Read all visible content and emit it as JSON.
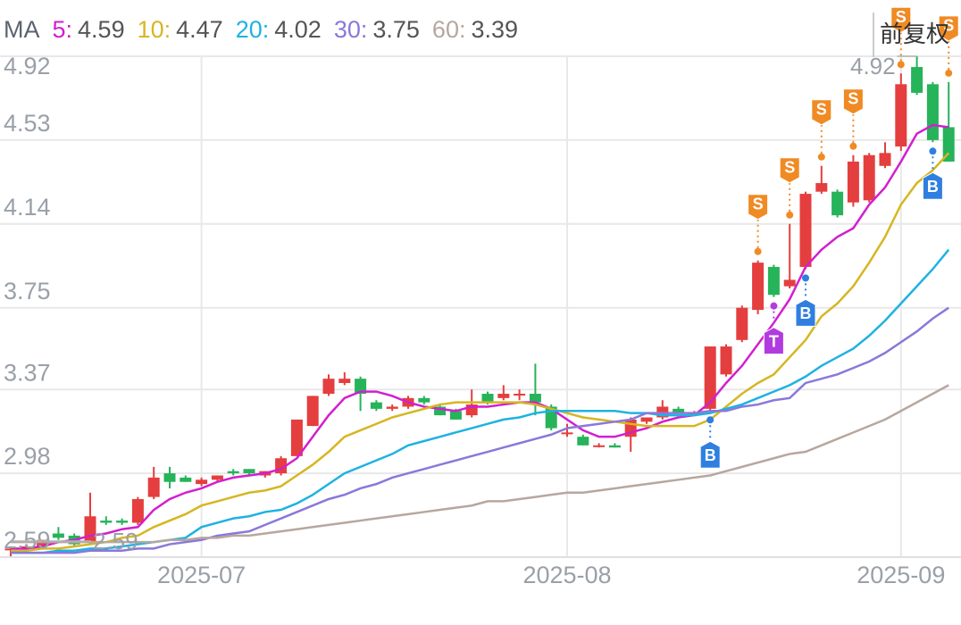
{
  "chart_data": {
    "type": "candlestick",
    "ma_label": "MA",
    "adjust_button": "前复权",
    "up_color": "#e53e3e",
    "down_color": "#26b35a",
    "grid": true,
    "ylim": [
      2.59,
      4.92
    ],
    "yticks": [
      2.59,
      2.98,
      3.37,
      3.75,
      4.14,
      4.53,
      4.92
    ],
    "categories": [
      null,
      null,
      null,
      null,
      null,
      null,
      null,
      null,
      null,
      null,
      null,
      null,
      "2025-07",
      null,
      null,
      null,
      null,
      null,
      null,
      null,
      null,
      null,
      null,
      null,
      null,
      null,
      null,
      null,
      null,
      null,
      null,
      null,
      null,
      null,
      null,
      "2025-08",
      null,
      null,
      null,
      null,
      null,
      null,
      null,
      null,
      null,
      null,
      null,
      null,
      null,
      null,
      null,
      null,
      null,
      null,
      null,
      null,
      "2025-09",
      null,
      null,
      null
    ],
    "ohlc": [
      [
        2.63,
        2.64,
        2.59,
        2.63
      ],
      [
        2.64,
        2.65,
        2.63,
        2.64
      ],
      [
        2.64,
        2.67,
        2.63,
        2.67
      ],
      [
        2.7,
        2.73,
        2.67,
        2.68
      ],
      [
        2.69,
        2.7,
        2.64,
        2.65
      ],
      [
        2.66,
        2.89,
        2.65,
        2.78
      ],
      [
        2.76,
        2.78,
        2.74,
        2.75
      ],
      [
        2.76,
        2.77,
        2.74,
        2.75
      ],
      [
        2.75,
        2.87,
        2.74,
        2.86
      ],
      [
        2.87,
        3.01,
        2.86,
        2.96
      ],
      [
        2.98,
        3.01,
        2.91,
        2.94
      ],
      [
        2.96,
        2.97,
        2.94,
        2.94
      ],
      [
        2.93,
        2.96,
        2.92,
        2.95
      ],
      [
        2.95,
        2.97,
        2.94,
        2.97
      ],
      [
        2.99,
        3.0,
        2.97,
        2.98
      ],
      [
        3.0,
        3.0,
        2.97,
        2.98
      ],
      [
        2.97,
        2.99,
        2.96,
        2.99
      ],
      [
        2.98,
        3.06,
        2.97,
        3.05
      ],
      [
        3.06,
        3.23,
        3.06,
        3.23
      ],
      [
        3.2,
        3.34,
        3.2,
        3.34
      ],
      [
        3.35,
        3.44,
        3.34,
        3.42
      ],
      [
        3.4,
        3.45,
        3.39,
        3.42
      ],
      [
        3.42,
        3.43,
        3.27,
        3.35
      ],
      [
        3.31,
        3.32,
        3.27,
        3.28
      ],
      [
        3.28,
        3.3,
        3.27,
        3.29
      ],
      [
        3.29,
        3.34,
        3.28,
        3.33
      ],
      [
        3.33,
        3.34,
        3.3,
        3.31
      ],
      [
        3.29,
        3.3,
        3.25,
        3.25
      ],
      [
        3.27,
        3.28,
        3.23,
        3.23
      ],
      [
        3.25,
        3.37,
        3.24,
        3.3
      ],
      [
        3.35,
        3.36,
        3.3,
        3.31
      ],
      [
        3.33,
        3.39,
        3.32,
        3.35
      ],
      [
        3.35,
        3.37,
        3.32,
        3.35
      ],
      [
        3.35,
        3.49,
        3.25,
        3.31
      ],
      [
        3.29,
        3.3,
        3.18,
        3.19
      ],
      [
        3.17,
        3.21,
        3.15,
        3.17
      ],
      [
        3.15,
        3.16,
        3.11,
        3.11
      ],
      [
        3.11,
        3.12,
        3.1,
        3.11
      ],
      [
        3.11,
        3.12,
        3.1,
        3.1
      ],
      [
        3.15,
        3.24,
        3.08,
        3.23
      ],
      [
        3.22,
        3.24,
        3.21,
        3.24
      ],
      [
        3.24,
        3.32,
        3.23,
        3.29
      ],
      [
        3.28,
        3.29,
        3.26,
        3.26
      ],
      [
        3.26,
        3.27,
        3.25,
        3.26
      ],
      [
        3.28,
        3.57,
        3.27,
        3.57
      ],
      [
        3.44,
        3.58,
        3.43,
        3.57
      ],
      [
        3.6,
        3.76,
        3.59,
        3.75
      ],
      [
        3.74,
        3.97,
        3.72,
        3.96
      ],
      [
        3.94,
        3.95,
        3.8,
        3.81
      ],
      [
        3.85,
        4.14,
        3.84,
        3.88
      ],
      [
        3.94,
        4.29,
        3.93,
        4.28
      ],
      [
        4.29,
        4.41,
        4.28,
        4.33
      ],
      [
        4.29,
        4.3,
        4.17,
        4.18
      ],
      [
        4.24,
        4.46,
        4.22,
        4.43
      ],
      [
        4.25,
        4.47,
        4.24,
        4.46
      ],
      [
        4.41,
        4.52,
        4.4,
        4.47
      ],
      [
        4.5,
        4.84,
        4.48,
        4.79
      ],
      [
        4.87,
        4.92,
        4.74,
        4.75
      ],
      [
        4.79,
        4.8,
        4.52,
        4.53
      ],
      [
        4.59,
        4.8,
        4.43,
        4.43
      ]
    ],
    "signals": [
      null,
      null,
      null,
      null,
      null,
      null,
      null,
      null,
      null,
      null,
      null,
      null,
      null,
      null,
      null,
      null,
      null,
      null,
      null,
      null,
      null,
      null,
      null,
      null,
      null,
      null,
      null,
      null,
      null,
      null,
      null,
      null,
      null,
      null,
      null,
      null,
      null,
      null,
      null,
      null,
      null,
      null,
      null,
      null,
      "B",
      null,
      null,
      "S",
      "T",
      "S",
      "B",
      "S",
      null,
      "S",
      null,
      null,
      "S",
      null,
      "B",
      "S"
    ],
    "high_label": "4.92",
    "low_label": "2.59",
    "series": [
      {
        "name": "5:",
        "color": "#d21fcf",
        "values": [
          2.63,
          2.63,
          2.64,
          2.66,
          2.67,
          2.69,
          2.7,
          2.72,
          2.73,
          2.81,
          2.86,
          2.89,
          2.91,
          2.94,
          2.96,
          2.97,
          2.98,
          3.0,
          3.05,
          3.15,
          3.25,
          3.33,
          3.36,
          3.36,
          3.34,
          3.31,
          3.29,
          3.28,
          3.27,
          3.29,
          3.29,
          3.3,
          3.31,
          3.31,
          3.28,
          3.23,
          3.18,
          3.15,
          3.15,
          3.17,
          3.19,
          3.22,
          3.24,
          3.25,
          3.31,
          3.4,
          3.48,
          3.58,
          3.68,
          3.79,
          3.94,
          4.02,
          4.08,
          4.12,
          4.23,
          4.31,
          4.43,
          4.56,
          4.6,
          4.59
        ]
      },
      {
        "name": "10:",
        "color": "#d6b622",
        "values": [
          2.62,
          2.62,
          2.63,
          2.63,
          2.64,
          2.65,
          2.66,
          2.68,
          2.69,
          2.73,
          2.76,
          2.79,
          2.83,
          2.85,
          2.87,
          2.89,
          2.9,
          2.92,
          2.97,
          3.02,
          3.08,
          3.15,
          3.18,
          3.21,
          3.24,
          3.26,
          3.28,
          3.3,
          3.31,
          3.31,
          3.31,
          3.31,
          3.31,
          3.3,
          3.28,
          3.26,
          3.24,
          3.23,
          3.22,
          3.21,
          3.2,
          3.2,
          3.2,
          3.2,
          3.23,
          3.29,
          3.35,
          3.4,
          3.44,
          3.52,
          3.6,
          3.71,
          3.77,
          3.85,
          3.96,
          4.08,
          4.23,
          4.33,
          4.39,
          4.47
        ]
      },
      {
        "name": "20:",
        "color": "#1eb2e2",
        "values": [
          2.61,
          2.61,
          2.61,
          2.62,
          2.62,
          2.63,
          2.63,
          2.64,
          2.65,
          2.66,
          2.67,
          2.68,
          2.73,
          2.75,
          2.77,
          2.78,
          2.8,
          2.81,
          2.84,
          2.88,
          2.93,
          2.98,
          3.01,
          3.04,
          3.07,
          3.11,
          3.13,
          3.15,
          3.17,
          3.19,
          3.21,
          3.23,
          3.24,
          3.26,
          3.27,
          3.27,
          3.27,
          3.27,
          3.27,
          3.26,
          3.26,
          3.25,
          3.25,
          3.25,
          3.26,
          3.28,
          3.3,
          3.33,
          3.36,
          3.39,
          3.43,
          3.48,
          3.52,
          3.56,
          3.62,
          3.69,
          3.77,
          3.85,
          3.93,
          4.02
        ]
      },
      {
        "name": "30:",
        "color": "#8a78da",
        "values": [
          2.61,
          2.61,
          2.61,
          2.61,
          2.61,
          2.62,
          2.62,
          2.62,
          2.63,
          2.63,
          2.65,
          2.66,
          2.67,
          2.69,
          2.7,
          2.71,
          2.74,
          2.77,
          2.8,
          2.83,
          2.86,
          2.88,
          2.91,
          2.93,
          2.96,
          2.98,
          3.0,
          3.02,
          3.04,
          3.06,
          3.08,
          3.1,
          3.12,
          3.14,
          3.16,
          3.19,
          3.2,
          3.21,
          3.22,
          3.23,
          3.26,
          3.26,
          3.26,
          3.26,
          3.27,
          3.27,
          3.29,
          3.3,
          3.32,
          3.33,
          3.4,
          3.42,
          3.44,
          3.47,
          3.5,
          3.54,
          3.59,
          3.64,
          3.7,
          3.75
        ]
      },
      {
        "name": "60:",
        "color": "#b7a79e",
        "values": [
          2.66,
          2.66,
          2.66,
          2.66,
          2.66,
          2.66,
          2.66,
          2.66,
          2.66,
          2.66,
          2.67,
          2.67,
          2.68,
          2.68,
          2.69,
          2.69,
          2.7,
          2.71,
          2.72,
          2.73,
          2.74,
          2.75,
          2.76,
          2.77,
          2.78,
          2.79,
          2.8,
          2.81,
          2.82,
          2.83,
          2.85,
          2.85,
          2.86,
          2.87,
          2.88,
          2.89,
          2.89,
          2.9,
          2.91,
          2.92,
          2.93,
          2.94,
          2.95,
          2.96,
          2.97,
          2.99,
          3.01,
          3.03,
          3.05,
          3.07,
          3.08,
          3.11,
          3.14,
          3.17,
          3.2,
          3.23,
          3.27,
          3.31,
          3.35,
          3.39
        ]
      }
    ]
  }
}
